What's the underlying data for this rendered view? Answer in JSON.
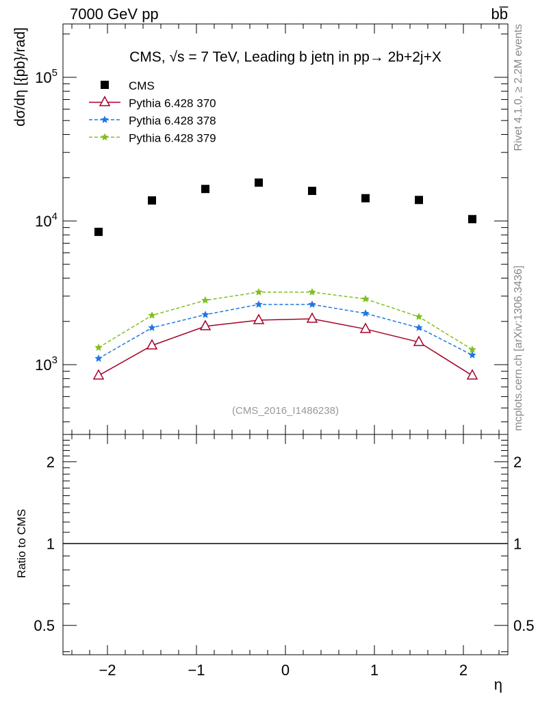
{
  "chart_data": [
    {
      "type": "scatter",
      "title": "CMS, √s = 7 TeV, Leading b jetη in pp→  2b+2j+X",
      "top_left_label": "7000 GeV pp",
      "top_right_label": "bb̅",
      "side_label_top": "Rivet 4.1.0, ≥ 2.2M events",
      "side_label_bottom": "mcplots.cern.ch [arXiv:1306.3436]",
      "analysis_label": "(CMS_2016_I1486238)",
      "xlabel": "η",
      "ylabel": "dσ/dη [{pb}/rad]",
      "xlim": [
        -2.5,
        2.5
      ],
      "ylim": [
        327,
        235000
      ],
      "yscale": "log",
      "yticks": [
        "10^3",
        "10^4",
        "10^5"
      ],
      "xticks": [
        "−2",
        "−1",
        "0",
        "1",
        "2"
      ],
      "x": [
        -2.1,
        -1.5,
        -0.9,
        -0.3,
        0.3,
        0.9,
        1.5,
        2.1
      ],
      "series": [
        {
          "name": "CMS",
          "color": "#000000",
          "marker": "square",
          "line": "none",
          "values": [
            8400,
            13900,
            16700,
            18500,
            16200,
            14400,
            14000,
            10300
          ]
        },
        {
          "name": "Pythia 6.428 370",
          "color": "#a50026",
          "marker": "open-triangle",
          "line": "solid",
          "values": [
            840,
            1360,
            1850,
            2040,
            2085,
            1770,
            1436,
            840
          ]
        },
        {
          "name": "Pythia 6.428 378",
          "color": "#1f77e0",
          "marker": "star",
          "line": "dashed",
          "values": [
            1104,
            1807,
            2228,
            2625,
            2625,
            2276,
            1807,
            1166
          ]
        },
        {
          "name": "Pythia 6.428 379",
          "color": "#7fbf1f",
          "marker": "star",
          "line": "dashed",
          "values": [
            1315,
            2203,
            2805,
            3198,
            3198,
            2865,
            2155,
            1273
          ]
        }
      ],
      "legend_placement": "top-left"
    },
    {
      "type": "line",
      "ylabel": "Ratio to CMS",
      "yscale": "log",
      "ylim": [
        0.39,
        2.52
      ],
      "yticks": [
        "0.5",
        "1",
        "2"
      ],
      "reference_line": 1
    }
  ]
}
